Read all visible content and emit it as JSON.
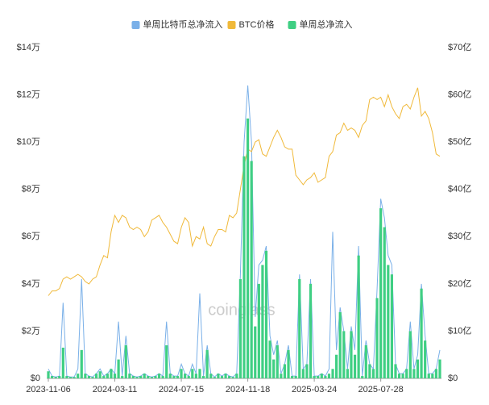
{
  "chart_data": {
    "type": "bar-line",
    "legend": "top",
    "categories": [
      "2023-11-06",
      null,
      null,
      null,
      null,
      null,
      null,
      null,
      null,
      null,
      null,
      null,
      null,
      null,
      null,
      null,
      null,
      null,
      "2024-03-11",
      null,
      null,
      null,
      null,
      null,
      null,
      null,
      null,
      null,
      null,
      null,
      null,
      null,
      null,
      null,
      null,
      null,
      "2024-07-15",
      null,
      null,
      null,
      null,
      null,
      null,
      null,
      null,
      null,
      null,
      null,
      null,
      null,
      null,
      null,
      null,
      null,
      "2024-11-18",
      null,
      null,
      null,
      null,
      null,
      null,
      null,
      null,
      null,
      null,
      null,
      null,
      null,
      null,
      null,
      null,
      null,
      "2025-03-24",
      null,
      null,
      null,
      null,
      null,
      null,
      null,
      null,
      null,
      null,
      null,
      null,
      null,
      null,
      null,
      null,
      null,
      "2025-07-28",
      null,
      null,
      null,
      null,
      null,
      null,
      null,
      null,
      null,
      null,
      null,
      null,
      null,
      null,
      null,
      null
    ],
    "ylim": [
      0,
      14
    ],
    "yticks": [
      {
        "value": 0,
        "label": "$0"
      },
      {
        "value": 2,
        "label": "$2万"
      },
      {
        "value": 4,
        "label": "$4万"
      },
      {
        "value": 6,
        "label": "$6万"
      },
      {
        "value": 8,
        "label": "$8万"
      },
      {
        "value": 10,
        "label": "$10万"
      },
      {
        "value": 12,
        "label": "$12万"
      },
      {
        "value": 14,
        "label": "$14万"
      }
    ],
    "y2lim": [
      0,
      70
    ],
    "y2ticks": [
      {
        "value": 0,
        "label": "$0"
      },
      {
        "value": 10,
        "label": "$10亿"
      },
      {
        "value": 20,
        "label": "$20亿"
      },
      {
        "value": 30,
        "label": "$30亿"
      },
      {
        "value": 40,
        "label": "$40亿"
      },
      {
        "value": 50,
        "label": "$50亿"
      },
      {
        "value": 60,
        "label": "$60亿"
      },
      {
        "value": 70,
        "label": "$70亿"
      }
    ],
    "watermark": "coinglass",
    "series": [
      {
        "name": "单周比特币总净流入",
        "color": "#7ab0e8",
        "kind": "line",
        "axis": "y2",
        "values": [
          2,
          0.5,
          0.3,
          0.5,
          16,
          0.5,
          0.3,
          0.3,
          2,
          21,
          1,
          0.5,
          0.3,
          1,
          2,
          0.5,
          1,
          2,
          1,
          12,
          0.5,
          9,
          1,
          0.5,
          0.3,
          0.5,
          1,
          0.5,
          0.3,
          0.5,
          1,
          0.5,
          12,
          1,
          0.5,
          0.5,
          3,
          1,
          0.5,
          3,
          1,
          18,
          0.5,
          7,
          1,
          0.3,
          1,
          0.5,
          1,
          0.5,
          0.3,
          1,
          22,
          50,
          62,
          50,
          13,
          24,
          25,
          28,
          9,
          5,
          8,
          1,
          3,
          7,
          0.5,
          0.5,
          22,
          2,
          3,
          21,
          0.5,
          0.5,
          1,
          0.5,
          2,
          31,
          6,
          15,
          10,
          2,
          11,
          6,
          28,
          0.5,
          8,
          3,
          2,
          19,
          38,
          34,
          26,
          24,
          3,
          1,
          1,
          2,
          12,
          2,
          5,
          20,
          9,
          1,
          1,
          2,
          6
        ]
      },
      {
        "name": "BTC价格",
        "color": "#f0b93a",
        "kind": "line",
        "axis": "y",
        "values": [
          3.5,
          3.7,
          3.7,
          3.8,
          4.2,
          4.3,
          4.2,
          4.3,
          4.4,
          4.3,
          4.1,
          4.0,
          4.2,
          4.3,
          4.8,
          5.2,
          5.1,
          6.2,
          6.9,
          6.6,
          6.9,
          6.8,
          6.4,
          6.3,
          6.4,
          6.3,
          6.0,
          6.2,
          6.7,
          6.8,
          6.9,
          6.6,
          6.4,
          6.1,
          5.8,
          5.7,
          6.4,
          6.8,
          6.6,
          5.6,
          6.0,
          5.9,
          6.4,
          5.7,
          5.6,
          6.0,
          6.3,
          6.3,
          6.2,
          6.9,
          6.8,
          7.0,
          8.0,
          9.0,
          9.7,
          9.6,
          10.0,
          10.1,
          9.5,
          9.4,
          9.8,
          10.2,
          10.5,
          10.2,
          9.8,
          9.7,
          9.7,
          8.6,
          8.4,
          8.2,
          8.4,
          8.5,
          8.7,
          8.3,
          8.4,
          8.5,
          9.4,
          9.6,
          10.3,
          10.4,
          10.8,
          10.5,
          10.6,
          10.5,
          10.2,
          10.7,
          10.9,
          11.8,
          11.9,
          11.8,
          11.9,
          11.5,
          12.0,
          11.5,
          11.2,
          11.0,
          11.5,
          11.6,
          11.4,
          11.9,
          12.3,
          11.1,
          11.3,
          11.0,
          10.4,
          9.5,
          9.4
        ]
      },
      {
        "name": "单周总净流入",
        "color": "#3fcf83",
        "kind": "bar",
        "axis": "y2",
        "values": [
          1.5,
          0.5,
          0.3,
          0.5,
          6.5,
          0.5,
          0.3,
          0.3,
          1,
          6,
          1,
          0.5,
          0.3,
          1,
          1.5,
          0.5,
          1,
          2,
          1,
          4,
          0.5,
          7,
          1,
          0.5,
          0.3,
          0.5,
          1,
          0.5,
          0.3,
          0.5,
          1,
          0.5,
          7,
          1,
          0.5,
          0.5,
          2,
          1,
          0.5,
          2,
          1,
          2,
          0.5,
          6,
          1,
          0.3,
          1,
          0.5,
          1,
          0.5,
          0.3,
          1,
          21,
          47,
          55,
          46,
          11,
          20,
          24,
          27,
          8,
          4,
          7,
          1,
          3,
          6,
          0.5,
          0.5,
          21,
          2,
          3,
          20,
          0.5,
          0.5,
          1,
          0.5,
          1,
          2,
          5,
          14,
          10,
          2,
          10,
          5,
          26,
          0.5,
          7,
          3,
          2,
          17,
          36,
          32,
          24,
          22,
          3,
          1,
          1,
          2,
          10,
          2,
          4,
          19,
          8,
          1,
          1,
          2,
          4
        ]
      }
    ]
  }
}
